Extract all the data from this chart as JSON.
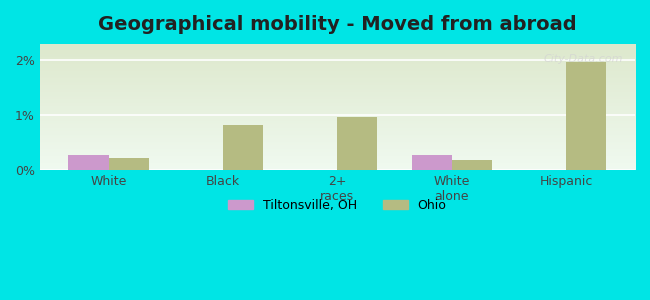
{
  "title": "Geographical mobility - Moved from abroad",
  "categories": [
    "White",
    "Black",
    "2+\nraces",
    "White\nalone",
    "Hispanic"
  ],
  "tiltonsville_values": [
    0.28,
    0.0,
    0.0,
    0.28,
    0.0
  ],
  "ohio_values": [
    0.22,
    0.82,
    0.97,
    0.18,
    1.97
  ],
  "tiltonsville_color": "#cc99cc",
  "ohio_color": "#b5bb82",
  "ylim": [
    0,
    2.3
  ],
  "yticks": [
    0,
    1,
    2
  ],
  "ytick_labels": [
    "0%",
    "1%",
    "2%"
  ],
  "background_color": "#00e5e5",
  "grid_color": "#ffffff",
  "bar_width": 0.35,
  "legend_tiltonsville": "Tiltonsville, OH",
  "legend_ohio": "Ohio",
  "title_fontsize": 14,
  "tick_fontsize": 9
}
